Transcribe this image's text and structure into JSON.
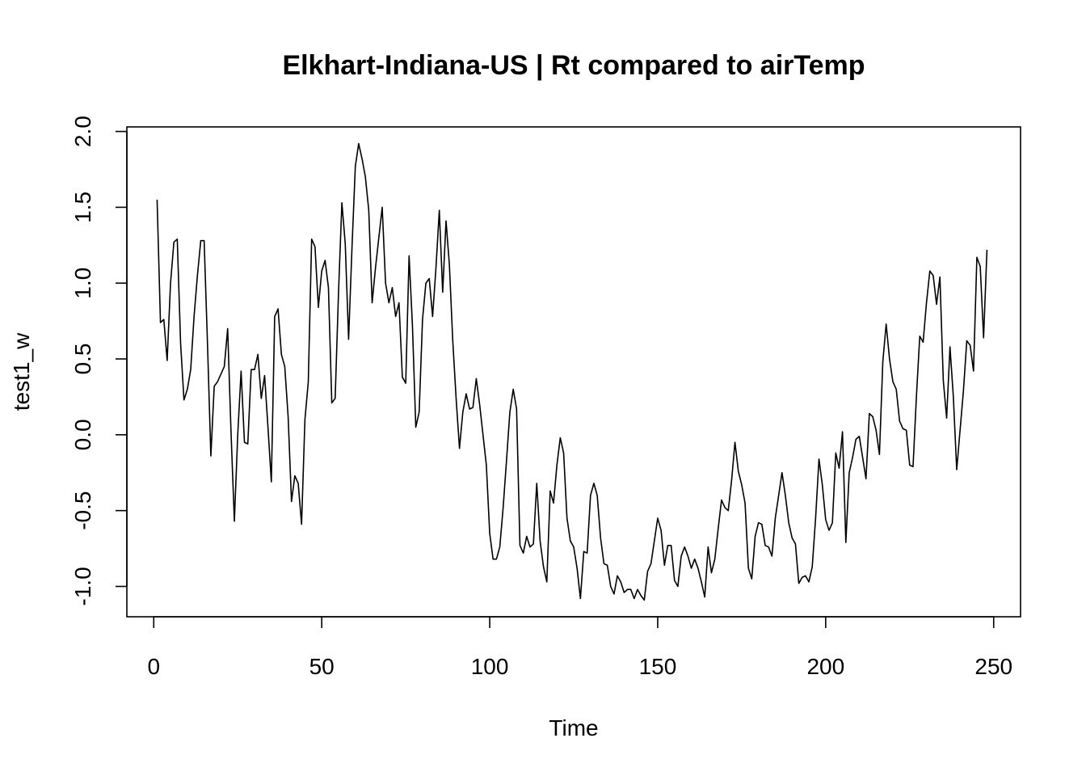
{
  "chart_data": {
    "type": "line",
    "title": "Elkhart-Indiana-US | Rt compared to airTemp",
    "xlabel": "Time",
    "ylabel": "test1_w",
    "xlim": [
      -8,
      258
    ],
    "ylim": [
      -1.2,
      2.03
    ],
    "x_ticks": [
      0,
      50,
      100,
      150,
      200,
      250
    ],
    "y_ticks": [
      -1.0,
      -0.5,
      0.0,
      0.5,
      1.0,
      1.5,
      2.0
    ],
    "x_tick_labels": [
      "0",
      "50",
      "100",
      "150",
      "200",
      "250"
    ],
    "y_tick_labels": [
      "-1.0",
      "-0.5",
      "0.0",
      "0.5",
      "1.0",
      "1.5",
      "2.0"
    ],
    "grid": false,
    "legend": "none",
    "line_color": "#000000",
    "x_start": 1,
    "x_step": 1,
    "values": [
      1.55,
      0.74,
      0.76,
      0.49,
      1.0,
      1.27,
      1.29,
      0.6,
      0.23,
      0.3,
      0.43,
      0.78,
      1.05,
      1.28,
      1.28,
      0.6,
      -0.14,
      0.32,
      0.35,
      0.4,
      0.45,
      0.7,
      0.02,
      -0.57,
      0.0,
      0.42,
      -0.05,
      -0.06,
      0.43,
      0.43,
      0.53,
      0.24,
      0.39,
      0.05,
      -0.31,
      0.78,
      0.83,
      0.53,
      0.45,
      0.12,
      -0.44,
      -0.27,
      -0.32,
      -0.59,
      0.1,
      0.35,
      1.29,
      1.24,
      0.84,
      1.08,
      1.15,
      0.97,
      0.21,
      0.24,
      0.94,
      1.53,
      1.26,
      0.63,
      1.23,
      1.77,
      1.92,
      1.82,
      1.7,
      1.48,
      0.87,
      1.1,
      1.3,
      1.5,
      1.0,
      0.87,
      0.97,
      0.78,
      0.87,
      0.38,
      0.34,
      1.18,
      0.72,
      0.05,
      0.15,
      0.76,
      1.0,
      1.03,
      0.78,
      1.1,
      1.48,
      0.94,
      1.41,
      1.12,
      0.62,
      0.24,
      -0.09,
      0.15,
      0.27,
      0.17,
      0.18,
      0.37,
      0.2,
      0.0,
      -0.2,
      -0.65,
      -0.82,
      -0.82,
      -0.74,
      -0.48,
      -0.17,
      0.15,
      0.3,
      0.17,
      -0.73,
      -0.78,
      -0.67,
      -0.74,
      -0.72,
      -0.32,
      -0.7,
      -0.87,
      -0.97,
      -0.37,
      -0.45,
      -0.2,
      -0.02,
      -0.12,
      -0.55,
      -0.7,
      -0.74,
      -0.88,
      -1.08,
      -0.77,
      -0.78,
      -0.4,
      -0.32,
      -0.4,
      -0.68,
      -0.85,
      -0.86,
      -1.0,
      -1.05,
      -0.93,
      -0.97,
      -1.04,
      -1.02,
      -1.02,
      -1.08,
      -1.02,
      -1.06,
      -1.09,
      -0.9,
      -0.85,
      -0.7,
      -0.55,
      -0.63,
      -0.86,
      -0.73,
      -0.73,
      -0.96,
      -1.0,
      -0.8,
      -0.74,
      -0.8,
      -0.88,
      -0.82,
      -0.88,
      -0.97,
      -1.07,
      -0.74,
      -0.91,
      -0.82,
      -0.62,
      -0.43,
      -0.48,
      -0.5,
      -0.3,
      -0.05,
      -0.24,
      -0.33,
      -0.45,
      -0.88,
      -0.95,
      -0.67,
      -0.58,
      -0.59,
      -0.73,
      -0.74,
      -0.8,
      -0.55,
      -0.4,
      -0.25,
      -0.4,
      -0.58,
      -0.68,
      -0.72,
      -0.98,
      -0.94,
      -0.93,
      -0.97,
      -0.87,
      -0.55,
      -0.16,
      -0.33,
      -0.56,
      -0.63,
      -0.58,
      -0.12,
      -0.22,
      0.02,
      -0.71,
      -0.25,
      -0.15,
      -0.03,
      -0.01,
      -0.15,
      -0.29,
      0.14,
      0.12,
      0.03,
      -0.13,
      0.48,
      0.73,
      0.5,
      0.35,
      0.3,
      0.09,
      0.04,
      0.03,
      -0.2,
      -0.21,
      0.25,
      0.65,
      0.61,
      0.87,
      1.08,
      1.05,
      0.86,
      1.04,
      0.36,
      0.11,
      0.58,
      0.25,
      -0.23,
      0.03,
      0.29,
      0.62,
      0.59,
      0.42,
      1.17,
      1.11,
      0.64,
      1.22
    ]
  }
}
